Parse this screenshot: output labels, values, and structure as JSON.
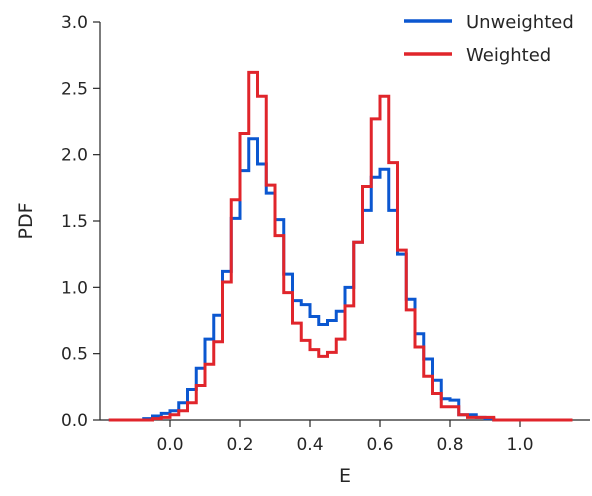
{
  "chart_data": {
    "type": "line",
    "style": "step histogram",
    "title": "",
    "xlabel": "E",
    "ylabel": "PDF",
    "xlim": [
      -0.2,
      1.2
    ],
    "ylim": [
      0,
      3.0
    ],
    "xticks": [
      "0.0",
      "0.2",
      "0.4",
      "0.6",
      "0.8",
      "1.0"
    ],
    "yticks": [
      "0.0",
      "0.5",
      "1.0",
      "1.5",
      "2.0",
      "2.5",
      "3.0"
    ],
    "grid": false,
    "legend_position": "top-right",
    "bin_edges": [
      -0.175,
      -0.15,
      -0.125,
      -0.1,
      -0.075,
      -0.05,
      -0.025,
      0.0,
      0.025,
      0.05,
      0.075,
      0.1,
      0.125,
      0.15,
      0.175,
      0.2,
      0.225,
      0.25,
      0.275,
      0.3,
      0.325,
      0.35,
      0.375,
      0.4,
      0.425,
      0.45,
      0.475,
      0.5,
      0.525,
      0.55,
      0.575,
      0.6,
      0.625,
      0.65,
      0.675,
      0.7,
      0.725,
      0.75,
      0.775,
      0.8,
      0.825,
      0.85,
      0.875,
      0.9,
      0.925,
      0.95,
      0.975,
      1.0,
      1.025,
      1.05,
      1.075,
      1.1,
      1.125,
      1.15
    ],
    "series": [
      {
        "name": "Unweighted",
        "color": "#0b57d0",
        "values": [
          0.0,
          0.0,
          0.0,
          0.0,
          0.01,
          0.03,
          0.05,
          0.07,
          0.13,
          0.23,
          0.39,
          0.61,
          0.79,
          1.12,
          1.52,
          1.88,
          2.12,
          1.93,
          1.71,
          1.51,
          1.1,
          0.9,
          0.87,
          0.78,
          0.72,
          0.75,
          0.82,
          1.0,
          1.34,
          1.58,
          1.83,
          1.89,
          1.58,
          1.25,
          0.91,
          0.65,
          0.46,
          0.3,
          0.16,
          0.15,
          0.04,
          0.04,
          0.02,
          0.01,
          0.0,
          0.0,
          0.0,
          0.0,
          0.0,
          0.0,
          0.0,
          0.0,
          0.0
        ]
      },
      {
        "name": "Weighted",
        "color": "#e0252b",
        "values": [
          0.0,
          0.0,
          0.0,
          0.0,
          0.0,
          0.01,
          0.02,
          0.04,
          0.07,
          0.13,
          0.26,
          0.42,
          0.59,
          1.04,
          1.66,
          2.16,
          2.62,
          2.44,
          1.77,
          1.39,
          0.96,
          0.73,
          0.6,
          0.53,
          0.48,
          0.51,
          0.61,
          0.86,
          1.34,
          1.76,
          2.27,
          2.44,
          1.94,
          1.28,
          0.83,
          0.55,
          0.33,
          0.2,
          0.1,
          0.1,
          0.04,
          0.02,
          0.02,
          0.02,
          0.0,
          0.0,
          0.0,
          0.0,
          0.0,
          0.0,
          0.0,
          0.0,
          0.0
        ]
      }
    ]
  }
}
